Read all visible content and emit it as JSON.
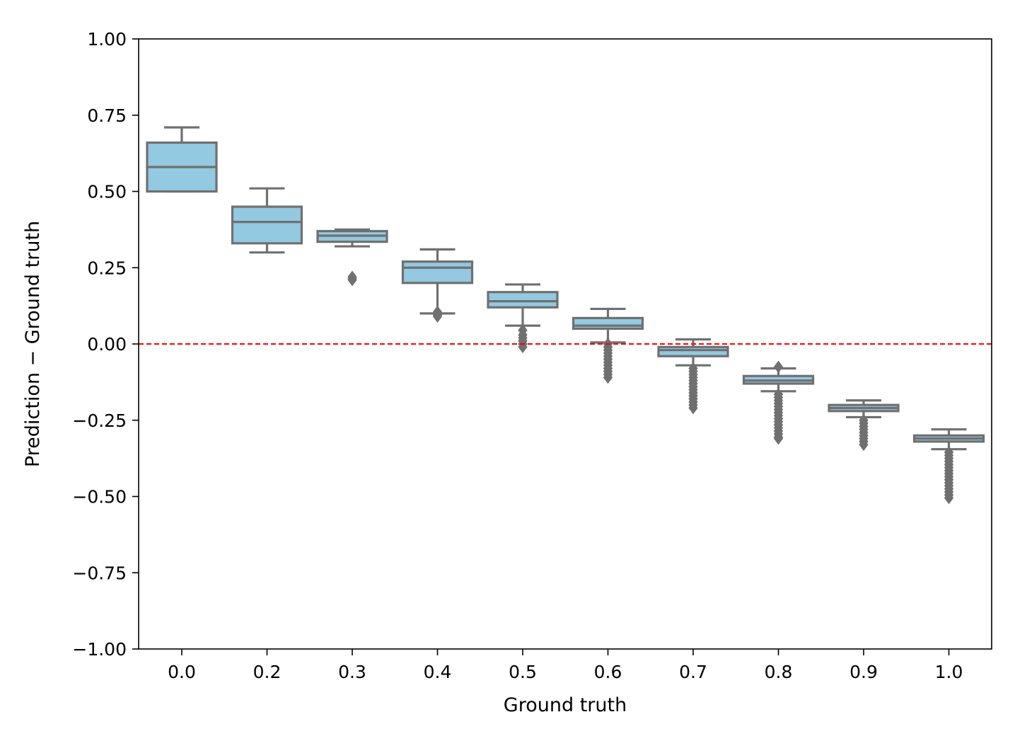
{
  "chart_data": {
    "type": "box",
    "title": "",
    "xlabel": "Ground truth",
    "ylabel": "Prediction − Ground truth",
    "ylim": [
      -1.0,
      1.0
    ],
    "yticks": [
      1.0,
      0.75,
      0.5,
      0.25,
      0.0,
      -0.25,
      -0.5,
      -0.75,
      -1.0
    ],
    "ytick_labels": [
      "1.00",
      "0.75",
      "0.50",
      "0.25",
      "0.00",
      "−0.25",
      "−0.50",
      "−0.75",
      "−1.00"
    ],
    "categories": [
      "0.0",
      "0.2",
      "0.3",
      "0.4",
      "0.5",
      "0.6",
      "0.7",
      "0.8",
      "0.9",
      "1.0"
    ],
    "boxes": [
      {
        "whisker_low": 0.5,
        "q1": 0.5,
        "median": 0.58,
        "q3": 0.66,
        "whisker_high": 0.71,
        "outliers": []
      },
      {
        "whisker_low": 0.3,
        "q1": 0.33,
        "median": 0.4,
        "q3": 0.45,
        "whisker_high": 0.51,
        "outliers": []
      },
      {
        "whisker_low": 0.32,
        "q1": 0.335,
        "median": 0.355,
        "q3": 0.37,
        "whisker_high": 0.375,
        "outliers": [
          0.21,
          0.215,
          0.22
        ]
      },
      {
        "whisker_low": 0.1,
        "q1": 0.2,
        "median": 0.25,
        "q3": 0.27,
        "whisker_high": 0.31,
        "outliers": [
          0.09,
          0.095,
          0.1,
          0.105
        ]
      },
      {
        "whisker_low": 0.06,
        "q1": 0.12,
        "median": 0.14,
        "q3": 0.17,
        "whisker_high": 0.195,
        "outliers": [
          0.045,
          0.03,
          0.02,
          0.01,
          0.0,
          -0.01
        ]
      },
      {
        "whisker_low": 0.005,
        "q1": 0.05,
        "median": 0.06,
        "q3": 0.085,
        "whisker_high": 0.115,
        "outliers": [
          0.0,
          -0.01,
          -0.02,
          -0.03,
          -0.04,
          -0.05,
          -0.06,
          -0.07,
          -0.08,
          -0.09,
          -0.1,
          -0.11
        ]
      },
      {
        "whisker_low": -0.07,
        "q1": -0.04,
        "median": -0.02,
        "q3": -0.01,
        "whisker_high": 0.015,
        "outliers": [
          -0.08,
          -0.09,
          -0.1,
          -0.11,
          -0.12,
          -0.13,
          -0.14,
          -0.15,
          -0.16,
          -0.17,
          -0.18,
          -0.19,
          -0.2,
          -0.21
        ]
      },
      {
        "whisker_low": -0.155,
        "q1": -0.13,
        "median": -0.12,
        "q3": -0.105,
        "whisker_high": -0.08,
        "outliers": [
          -0.075,
          -0.165,
          -0.175,
          -0.185,
          -0.195,
          -0.205,
          -0.215,
          -0.225,
          -0.235,
          -0.245,
          -0.255,
          -0.265,
          -0.275,
          -0.285,
          -0.295,
          -0.305,
          -0.31
        ]
      },
      {
        "whisker_low": -0.24,
        "q1": -0.22,
        "median": -0.21,
        "q3": -0.2,
        "whisker_high": -0.185,
        "outliers": [
          -0.25,
          -0.26,
          -0.27,
          -0.28,
          -0.29,
          -0.3,
          -0.31,
          -0.32,
          -0.33
        ]
      },
      {
        "whisker_low": -0.345,
        "q1": -0.32,
        "median": -0.31,
        "q3": -0.3,
        "whisker_high": -0.28,
        "outliers": [
          -0.355,
          -0.365,
          -0.375,
          -0.385,
          -0.395,
          -0.405,
          -0.415,
          -0.425,
          -0.435,
          -0.445,
          -0.455,
          -0.465,
          -0.475,
          -0.485,
          -0.495,
          -0.505
        ]
      }
    ],
    "reference_line": {
      "y": 0.0,
      "color": "#ff0000",
      "style": "dashed"
    },
    "box_color": "#93c9e1",
    "edge_color": "#707070",
    "grid": false,
    "legend": "none"
  }
}
